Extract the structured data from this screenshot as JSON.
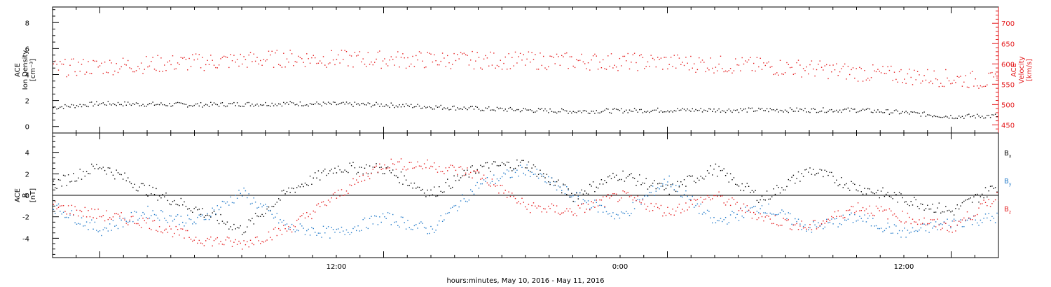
{
  "chart_data": [
    {
      "type": "scatter",
      "title": "",
      "x_axis": {
        "label": "hours:minutes, May 10, 2016 - May 11, 2016",
        "range_hours": [
          -14,
          26
        ],
        "ticks": [
          {
            "hour": 12,
            "label": "12:00"
          },
          {
            "hour": 24,
            "label": "0:00"
          },
          {
            "hour": 36,
            "label": "12:00"
          }
        ]
      },
      "y_left": {
        "label_lines": [
          "ACE",
          "Ion Density",
          "[cm⁻³]"
        ],
        "range": [
          -0.5,
          9.2
        ],
        "ticks": [
          0,
          2,
          4,
          6,
          8
        ],
        "color": "#000000"
      },
      "y_right": {
        "label_lines": [
          "ACE",
          "Velocity",
          "[km/s]"
        ],
        "range": [
          430,
          740
        ],
        "ticks": [
          450,
          500,
          550,
          600,
          650,
          700
        ],
        "color": "#e41a1c"
      },
      "series": [
        {
          "key": "density",
          "axis": "left",
          "color": "#000000",
          "keypoints": [
            [
              -14,
              1.5
            ],
            [
              -12,
              1.8
            ],
            [
              -8,
              1.7
            ],
            [
              -4,
              1.8
            ],
            [
              0,
              1.7
            ],
            [
              4,
              1.4
            ],
            [
              8,
              1.2
            ],
            [
              12,
              1.3
            ],
            [
              16,
              1.3
            ],
            [
              20,
              1.3
            ],
            [
              22,
              1.1
            ],
            [
              24,
              0.8
            ],
            [
              28,
              0.9
            ],
            [
              32,
              1.0
            ],
            [
              36,
              1.1
            ],
            [
              40,
              1.2
            ],
            [
              44,
              1.3
            ],
            [
              46,
              1.4
            ]
          ]
        },
        {
          "key": "velocity",
          "axis": "right",
          "color": "#e41a1c",
          "keypoints": [
            [
              -14,
              590
            ],
            [
              -12,
              595
            ],
            [
              -8,
              605
            ],
            [
              -4,
              615
            ],
            [
              0,
              612
            ],
            [
              4,
              610
            ],
            [
              8,
              608
            ],
            [
              12,
              605
            ],
            [
              16,
              595
            ],
            [
              18,
              590
            ],
            [
              20,
              580
            ],
            [
              24,
              565
            ],
            [
              28,
              550
            ],
            [
              30,
              540
            ],
            [
              34,
              530
            ],
            [
              36,
              520
            ],
            [
              40,
              510
            ],
            [
              44,
              505
            ],
            [
              46,
              500
            ]
          ]
        }
      ]
    },
    {
      "type": "scatter",
      "title": "",
      "x_axis": {
        "label": "hours:minutes, May 10, 2016 - May 11, 2016",
        "range_hours": [
          -14,
          26
        ],
        "ticks": [
          {
            "hour": 12,
            "label": "12:00"
          },
          {
            "hour": 24,
            "label": "0:00"
          },
          {
            "hour": 36,
            "label": "12:00"
          }
        ]
      },
      "y_left": {
        "label_lines": [
          "ACE",
          "B",
          "[nT]"
        ],
        "range": [
          -5.8,
          5.8
        ],
        "ticks": [
          -4,
          -2,
          0,
          2,
          4
        ]
      },
      "zero_line": true,
      "legend_position": "right",
      "series": [
        {
          "key": "Bx",
          "name": "B",
          "subscript": "x",
          "color": "#000000",
          "keypoints": [
            [
              -14,
              1.0
            ],
            [
              -12,
              2.8
            ],
            [
              -10,
              0.5
            ],
            [
              -8,
              -1.2
            ],
            [
              -6,
              -3.2
            ],
            [
              -4,
              0.5
            ],
            [
              -2,
              2.6
            ],
            [
              0,
              2.5
            ],
            [
              2,
              0.2
            ],
            [
              4,
              2.6
            ],
            [
              6,
              3.0
            ],
            [
              8,
              0.0
            ],
            [
              10,
              2.0
            ],
            [
              12,
              0.5
            ],
            [
              14,
              2.5
            ],
            [
              16,
              -0.3
            ],
            [
              18,
              2.4
            ],
            [
              20,
              0.8
            ],
            [
              22,
              -0.3
            ],
            [
              24,
              -1.5
            ],
            [
              26,
              1.0
            ],
            [
              28,
              2.3
            ],
            [
              30,
              0.8
            ],
            [
              32,
              2.3
            ],
            [
              34,
              2.1
            ],
            [
              36,
              2.4
            ],
            [
              38,
              2.5
            ],
            [
              40,
              1.5
            ],
            [
              42,
              0.8
            ],
            [
              44,
              3.2
            ],
            [
              46,
              2.8
            ]
          ]
        },
        {
          "key": "By",
          "name": "B",
          "subscript": "y",
          "color": "#1f78c8",
          "keypoints": [
            [
              -14,
              -1.0
            ],
            [
              -12,
              -3.2
            ],
            [
              -10,
              -1.5
            ],
            [
              -8,
              -2.5
            ],
            [
              -6,
              0.3
            ],
            [
              -4,
              -3.0
            ],
            [
              -2,
              -3.5
            ],
            [
              0,
              -2.0
            ],
            [
              2,
              -3.2
            ],
            [
              4,
              1.0
            ],
            [
              6,
              2.5
            ],
            [
              8,
              0.0
            ],
            [
              10,
              -2.0
            ],
            [
              12,
              1.5
            ],
            [
              14,
              -2.5
            ],
            [
              16,
              -1.0
            ],
            [
              18,
              -3.0
            ],
            [
              20,
              -2.0
            ],
            [
              22,
              -3.5
            ],
            [
              24,
              -2.5
            ],
            [
              26,
              -2.0
            ],
            [
              28,
              -3.0
            ],
            [
              30,
              -2.5
            ],
            [
              32,
              -1.0
            ],
            [
              34,
              -2.0
            ],
            [
              36,
              0.5
            ],
            [
              38,
              -0.2
            ],
            [
              40,
              -2.5
            ],
            [
              42,
              -3.0
            ],
            [
              44,
              -1.0
            ],
            [
              46,
              -1.0
            ]
          ]
        },
        {
          "key": "Bz",
          "name": "B",
          "subscript": "z",
          "color": "#e41a1c",
          "keypoints": [
            [
              -14,
              -1.0
            ],
            [
              -12,
              -1.8
            ],
            [
              -10,
              -2.5
            ],
            [
              -8,
              -4.0
            ],
            [
              -6,
              -4.5
            ],
            [
              -4,
              -3.0
            ],
            [
              -2,
              0.0
            ],
            [
              0,
              3.0
            ],
            [
              2,
              2.8
            ],
            [
              4,
              2.0
            ],
            [
              6,
              -1.0
            ],
            [
              8,
              -1.5
            ],
            [
              10,
              0.0
            ],
            [
              12,
              -1.5
            ],
            [
              14,
              0.0
            ],
            [
              16,
              -2.0
            ],
            [
              18,
              -3.0
            ],
            [
              20,
              -1.0
            ],
            [
              22,
              -2.0
            ],
            [
              24,
              -3.0
            ],
            [
              26,
              0.0
            ],
            [
              28,
              -1.0
            ],
            [
              30,
              -0.5
            ],
            [
              32,
              1.0
            ],
            [
              34,
              -1.0
            ],
            [
              36,
              1.0
            ],
            [
              38,
              -1.5
            ],
            [
              40,
              -1.0
            ],
            [
              42,
              2.0
            ],
            [
              44,
              2.5
            ],
            [
              46,
              1.8
            ]
          ]
        }
      ]
    }
  ]
}
